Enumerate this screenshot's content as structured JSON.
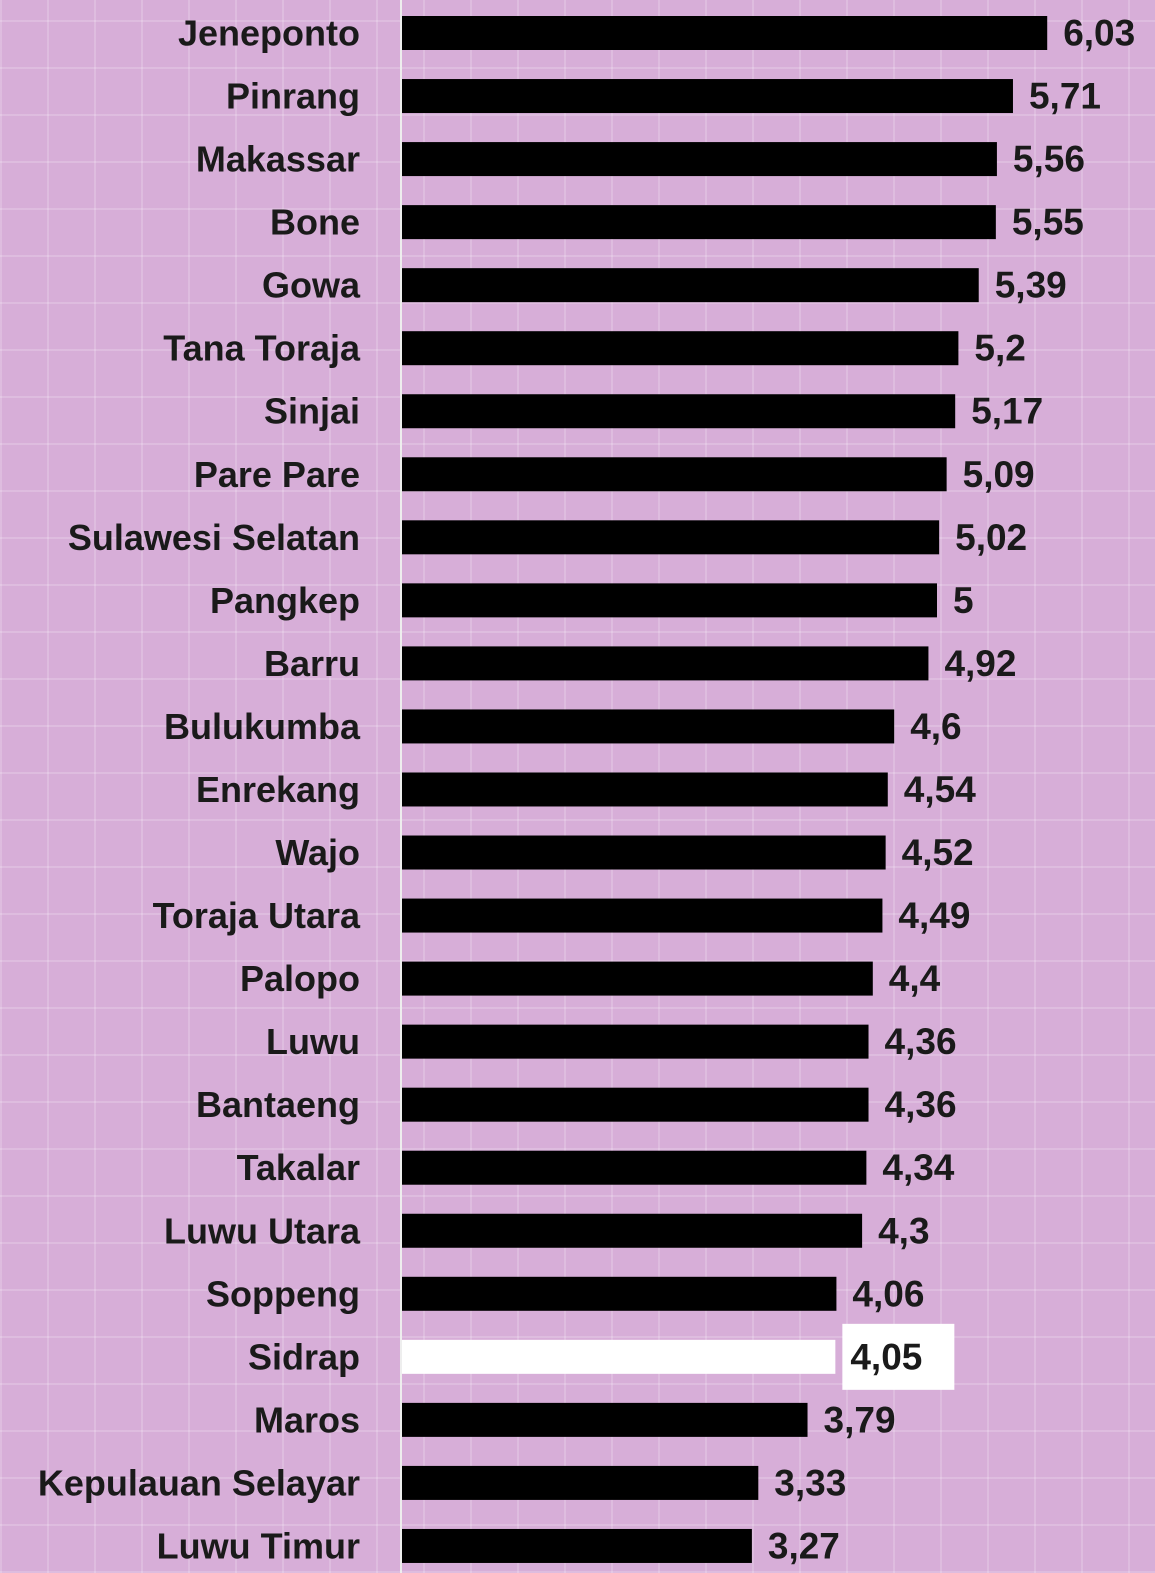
{
  "chart_data": {
    "type": "bar",
    "orientation": "horizontal",
    "categories": [
      "Jeneponto",
      "Pinrang",
      "Makassar",
      "Bone",
      "Gowa",
      "Tana Toraja",
      "Sinjai",
      "Pare Pare",
      "Sulawesi Selatan",
      "Pangkep",
      "Barru",
      "Bulukumba",
      "Enrekang",
      "Wajo",
      "Toraja Utara",
      "Palopo",
      "Luwu",
      "Bantaeng",
      "Takalar",
      "Luwu Utara",
      "Soppeng",
      "Sidrap",
      "Maros",
      "Kepulauan Selayar",
      "Luwu Timur"
    ],
    "values": [
      6.03,
      5.71,
      5.56,
      5.55,
      5.39,
      5.2,
      5.17,
      5.09,
      5.02,
      5,
      4.92,
      4.6,
      4.54,
      4.52,
      4.49,
      4.4,
      4.36,
      4.36,
      4.34,
      4.3,
      4.06,
      4.05,
      3.79,
      3.33,
      3.27
    ],
    "value_labels": [
      "6,03",
      "5,71",
      "5,56",
      "5,55",
      "5,39",
      "5,2",
      "5,17",
      "5,09",
      "5,02",
      "5",
      "4,92",
      "4,6",
      "4,54",
      "4,52",
      "4,49",
      "4,4",
      "4,36",
      "4,36",
      "4,34",
      "4,3",
      "4,06",
      "4,05",
      "3,79",
      "3,33",
      "3,27"
    ],
    "colors": [
      "#000000",
      "#000000",
      "#000000",
      "#000000",
      "#000000",
      "#000000",
      "#000000",
      "#000000",
      "#000000",
      "#000000",
      "#000000",
      "#000000",
      "#000000",
      "#000000",
      "#000000",
      "#000000",
      "#000000",
      "#000000",
      "#000000",
      "#000000",
      "#000000",
      "#ffffff",
      "#000000",
      "#000000",
      "#000000"
    ]
  }
}
